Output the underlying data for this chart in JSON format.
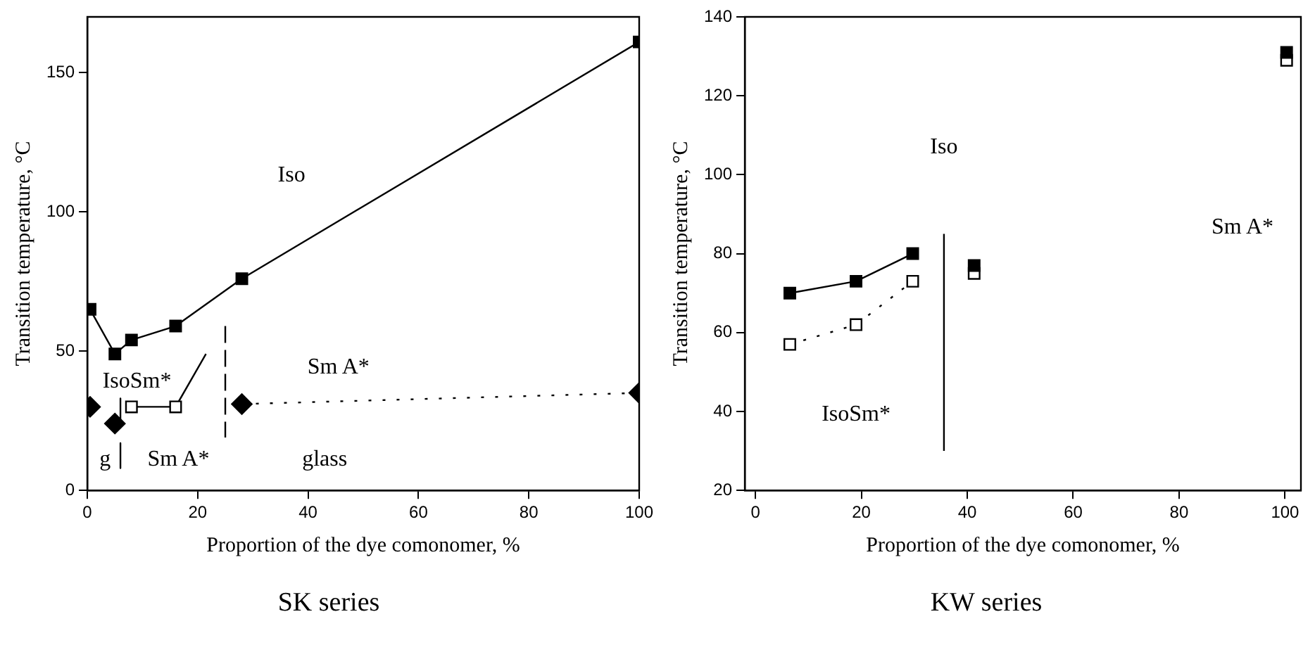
{
  "chart_data": [
    {
      "type": "scatter",
      "title": "SK series",
      "xlabel": "Proportion of the dye comonomer, %",
      "ylabel": "Transition temperature, °C",
      "xlim": [
        0,
        100
      ],
      "ylim": [
        0,
        170
      ],
      "xticks": [
        0,
        20,
        40,
        60,
        80,
        100
      ],
      "yticks": [
        0,
        50,
        100,
        150
      ],
      "grid": false,
      "legend": false,
      "series": [
        {
          "type": "line",
          "color": "#000000",
          "marker": "square",
          "line_style": "solid",
          "x": [
            0.5,
            5,
            8,
            16,
            28,
            100
          ],
          "values": [
            65,
            49,
            54,
            59,
            76,
            161
          ]
        },
        {
          "type": "scatter",
          "color": "#ffffff",
          "marker": "square",
          "x": [
            8,
            16
          ],
          "values": [
            30,
            30
          ]
        },
        {
          "type": "line",
          "color": "#000000",
          "marker": "none",
          "line_style": "solid",
          "x": [
            8,
            16,
            21.5
          ],
          "values": [
            30,
            30,
            49
          ]
        },
        {
          "type": "scatter",
          "color": "#000000",
          "marker": "diamond",
          "x": [
            0.5,
            5,
            28,
            100
          ],
          "values": [
            30,
            24,
            31,
            35
          ]
        },
        {
          "type": "line",
          "color": "#000000",
          "marker": "none",
          "line_style": "dotted",
          "x": [
            28,
            100
          ],
          "values": [
            31,
            35
          ]
        },
        {
          "type": "line",
          "color": "#000000",
          "marker": "none",
          "line_style": "solid",
          "x": [
            6,
            6
          ],
          "values": [
            33,
            25
          ]
        },
        {
          "type": "line",
          "color": "#000000",
          "marker": "none",
          "line_style": "solid",
          "x": [
            6,
            6
          ],
          "values": [
            17,
            8
          ]
        },
        {
          "type": "line",
          "color": "#000000",
          "marker": "none",
          "line_style": "dashed",
          "x": [
            25,
            25
          ],
          "values": [
            59,
            19
          ]
        }
      ],
      "annotations": [
        "Iso",
        "IsoSm*",
        "Sm A*",
        "g",
        "Sm A*",
        "glass"
      ]
    },
    {
      "type": "scatter",
      "title": "KW series",
      "xlabel": "Proportion of the dye comonomer, %",
      "ylabel": "Transition temperature, °C",
      "xlim": [
        -2,
        103
      ],
      "ylim": [
        20,
        140
      ],
      "xticks": [
        0,
        20,
        40,
        60,
        80,
        100
      ],
      "yticks": [
        20,
        40,
        60,
        80,
        100,
        120,
        140
      ],
      "grid": false,
      "legend": false,
      "series": [
        {
          "type": "scatter",
          "color": "#000000",
          "marker": "square",
          "x": [
            6.5,
            19,
            29.7,
            41.3,
            100.3
          ],
          "values": [
            70,
            73,
            80,
            77,
            131
          ]
        },
        {
          "type": "scatter",
          "color": "#ffffff",
          "marker": "square",
          "x": [
            6.5,
            19,
            29.7,
            41.3,
            100.3
          ],
          "values": [
            57,
            62,
            73,
            75,
            129
          ]
        },
        {
          "type": "line",
          "color": "#000000",
          "marker": "none",
          "line_style": "solid",
          "x": [
            6.5,
            19,
            29.7
          ],
          "values": [
            70,
            73,
            80
          ]
        },
        {
          "type": "line",
          "color": "#000000",
          "marker": "none",
          "line_style": "dotted",
          "x": [
            6.5,
            19,
            29.7
          ],
          "values": [
            57,
            62,
            73
          ]
        },
        {
          "type": "line",
          "color": "#000000",
          "marker": "none",
          "line_style": "solid",
          "x": [
            35.6,
            35.6
          ],
          "values": [
            30,
            85
          ]
        }
      ],
      "annotations": [
        "Iso",
        "Sm A*",
        "IsoSm*"
      ]
    }
  ]
}
